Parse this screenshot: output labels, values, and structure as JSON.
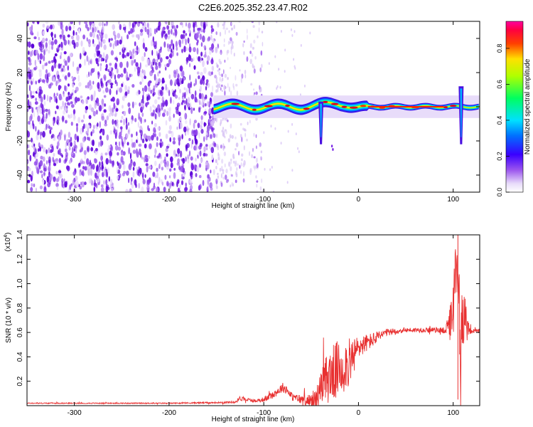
{
  "title": "C2E6.2025.352.23.47.R02",
  "colors": {
    "snr_line": "#e83030",
    "purple": "#7a1fe0",
    "light_purple": "#d9c6f5"
  },
  "chart_data": [
    {
      "type": "heatmap",
      "name": "spectrogram",
      "xlabel": "Height of straight line (km)",
      "ylabel": "Frequency (Hz)",
      "xlim": [
        -350,
        128
      ],
      "ylim": [
        -50,
        50
      ],
      "x_ticks": [
        -300,
        -200,
        -100,
        0,
        100
      ],
      "x_tick_labels": [
        "-300",
        "-200",
        "-100",
        "0",
        "100"
      ],
      "y_ticks": [
        -40,
        -20,
        0,
        20,
        40
      ],
      "y_tick_labels": [
        "-40",
        "-20",
        "0",
        "20",
        "40"
      ],
      "colorbar": {
        "label": "Normalized spectral amplitude",
        "range": [
          0,
          0.95
        ],
        "ticks": [
          0.0,
          0.2,
          0.4,
          0.6,
          0.8
        ],
        "tick_labels": [
          "0.0",
          "0.2",
          "0.4",
          "0.6",
          "0.8"
        ],
        "colormap": "rainbow (white-violet-blue-cyan-green-yellow-red-magenta)"
      },
      "noise_region_x": [
        -350,
        -150
      ],
      "sparse_noise_region_x": [
        -150,
        -100
      ],
      "signal_band": {
        "x_start": -153,
        "x_end": 128,
        "center_freq": 0,
        "half_width_hz": 3
      },
      "signal_features": [
        {
          "x": -40,
          "freq_min": -22,
          "freq_max": 3
        },
        {
          "x": 108,
          "freq_min": -22,
          "freq_max": 12
        }
      ],
      "grid": false
    },
    {
      "type": "line",
      "name": "snr",
      "xlabel": "Height of straight line (km)",
      "ylabel": "SNR (10 * v/v)",
      "y_scale_label": "(x10^4)",
      "y_scale_base": "(x10",
      "y_scale_exp": "4",
      "xlim": [
        -350,
        128
      ],
      "ylim": [
        0,
        1.4
      ],
      "x_ticks": [
        -300,
        -200,
        -100,
        0,
        100
      ],
      "x_tick_labels": [
        "-300",
        "-200",
        "-100",
        "0",
        "100"
      ],
      "y_ticks": [
        0.2,
        0.4,
        0.6,
        0.8,
        1.0,
        1.2,
        1.4
      ],
      "y_tick_labels": [
        "0.2",
        "0.4",
        "0.6",
        "0.8",
        "1.0",
        "1.2",
        "1.4"
      ],
      "series": [
        {
          "color": "#e83030",
          "x": [
            -350,
            -300,
            -200,
            -150,
            -130,
            -125,
            -110,
            -100,
            -90,
            -85,
            -80,
            -75,
            -70,
            -60,
            -50,
            -45,
            -40,
            -35,
            -30,
            -25,
            -20,
            -15,
            -10,
            -5,
            0,
            5,
            10,
            15,
            20,
            25,
            30,
            40,
            50,
            60,
            70,
            80,
            90,
            95,
            98,
            100,
            102,
            105,
            108,
            110,
            112,
            115,
            120,
            128
          ],
          "y": [
            0.02,
            0.02,
            0.02,
            0.025,
            0.03,
            0.06,
            0.04,
            0.05,
            0.09,
            0.12,
            0.15,
            0.13,
            0.07,
            0.05,
            0.04,
            0.06,
            0.12,
            0.2,
            0.25,
            0.28,
            0.3,
            0.33,
            0.35,
            0.4,
            0.48,
            0.5,
            0.52,
            0.54,
            0.56,
            0.58,
            0.6,
            0.61,
            0.62,
            0.62,
            0.62,
            0.62,
            0.62,
            0.64,
            0.7,
            0.75,
            1.0,
            1.2,
            0.4,
            0.8,
            0.75,
            0.62,
            0.61,
            0.61
          ],
          "noise_amplitude": [
            0.004,
            0.004,
            0.004,
            0.006,
            0.01,
            0.02,
            0.012,
            0.02,
            0.03,
            0.035,
            0.04,
            0.04,
            0.03,
            0.04,
            0.05,
            0.08,
            0.15,
            0.2,
            0.22,
            0.24,
            0.24,
            0.22,
            0.2,
            0.16,
            0.1,
            0.08,
            0.07,
            0.06,
            0.05,
            0.04,
            0.03,
            0.025,
            0.02,
            0.02,
            0.02,
            0.02,
            0.03,
            0.08,
            0.2,
            0.25,
            0.3,
            0.35,
            0.35,
            0.3,
            0.25,
            0.08,
            0.02,
            0.02
          ]
        }
      ],
      "grid": false
    }
  ]
}
